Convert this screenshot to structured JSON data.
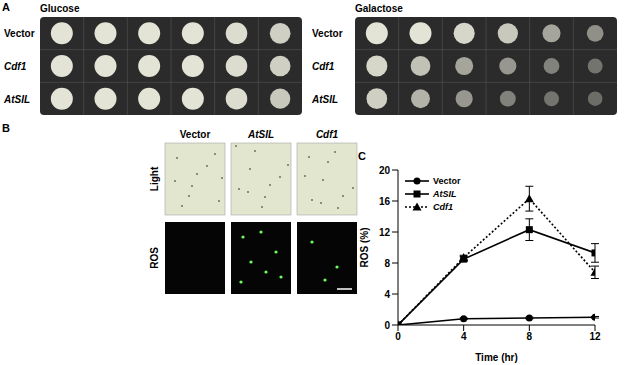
{
  "panel_a": {
    "label": "A",
    "plates": [
      {
        "title": "Glucose",
        "rows": [
          "Vector",
          "Cdf1",
          "AtSIL"
        ]
      },
      {
        "title": "Galactose",
        "rows": [
          "Vector",
          "Cdf1",
          "AtSIL"
        ]
      }
    ]
  },
  "panel_b": {
    "label": "B",
    "columns": [
      "Vector",
      "AtSIL",
      "Cdf1"
    ],
    "rows": [
      "Light",
      "ROS"
    ]
  },
  "panel_c": {
    "label": "C"
  },
  "chart_data": {
    "type": "line",
    "x_label": "Time (hr)",
    "y_label": "ROS (%)",
    "x": [
      0,
      4,
      8,
      12
    ],
    "xlim": [
      0,
      12
    ],
    "xticks": [
      0,
      4,
      8,
      12
    ],
    "ylim": [
      0,
      20
    ],
    "yticks": [
      0,
      4,
      8,
      12,
      16,
      20
    ],
    "legend": "upper left",
    "series": [
      {
        "name": "Vector",
        "color": "#000000",
        "marker": "circle",
        "line_style": "solid",
        "values": [
          0,
          0.8,
          0.9,
          1.0
        ],
        "errors": [
          0,
          0.1,
          0.1,
          0.1
        ]
      },
      {
        "name": "AtSIL",
        "color": "#000000",
        "marker": "square",
        "line_style": "solid",
        "values": [
          0,
          8.5,
          12.3,
          9.3
        ],
        "errors": [
          0,
          0.3,
          1.4,
          1.2
        ]
      },
      {
        "name": "Cdf1",
        "color": "#000000",
        "marker": "triangle",
        "line_style": "dotted",
        "values": [
          0,
          8.7,
          16.3,
          6.8
        ],
        "errors": [
          0,
          0.3,
          1.6,
          0.8
        ]
      }
    ]
  }
}
